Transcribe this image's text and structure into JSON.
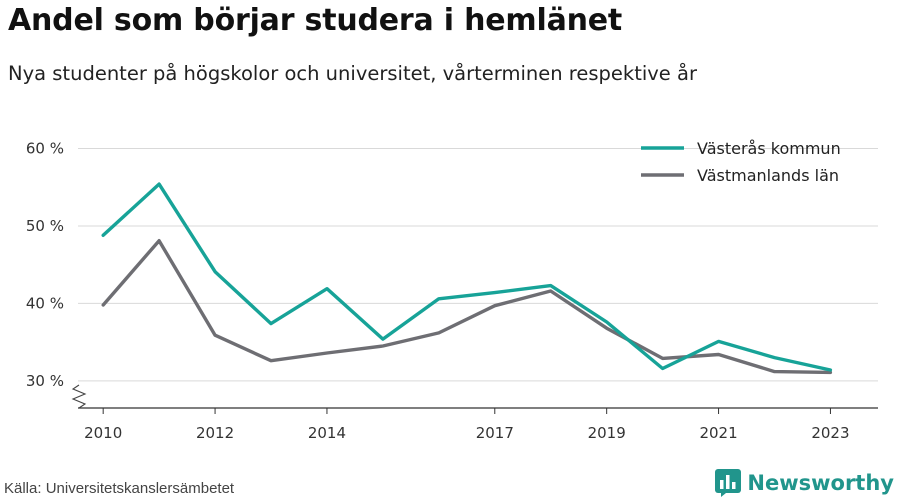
{
  "title": "Andel som börjar studera i hemlänet",
  "subtitle": "Nya studenter på högskolor och universitet, vårterminen respektive år",
  "source": "Källa: Universitetskanslersämbetet",
  "brand": {
    "name": "Newsworthy",
    "color": "#21958c",
    "icon": "bar-chart-logo-icon"
  },
  "chart_data": {
    "type": "line",
    "title": "",
    "xlabel": "",
    "ylabel": "",
    "x": [
      2010,
      2011,
      2012,
      2013,
      2014,
      2015,
      2016,
      2017,
      2018,
      2019,
      2020,
      2021,
      2022,
      2023
    ],
    "x_tick_labels": [
      "2010",
      "2012",
      "2014",
      "2017",
      "2019",
      "2021",
      "2023"
    ],
    "y_ticks": [
      30,
      40,
      50,
      60
    ],
    "y_tick_labels": [
      "30 %",
      "40 %",
      "50 %",
      "60 %"
    ],
    "ylim": [
      26.5,
      62
    ],
    "y_axis_break": true,
    "grid": true,
    "legend_position": "top-right",
    "series": [
      {
        "name": "Västerås kommun",
        "color": "#17a398",
        "values": [
          48.8,
          55.4,
          44.1,
          37.4,
          41.9,
          35.4,
          40.6,
          41.4,
          42.3,
          37.6,
          31.6,
          35.1,
          33.0,
          31.4
        ]
      },
      {
        "name": "Västmanlands län",
        "color": "#6e6e73",
        "values": [
          39.8,
          48.1,
          35.9,
          32.6,
          33.6,
          34.5,
          36.2,
          39.7,
          41.6,
          36.8,
          32.9,
          33.4,
          31.2,
          31.1
        ]
      }
    ]
  }
}
